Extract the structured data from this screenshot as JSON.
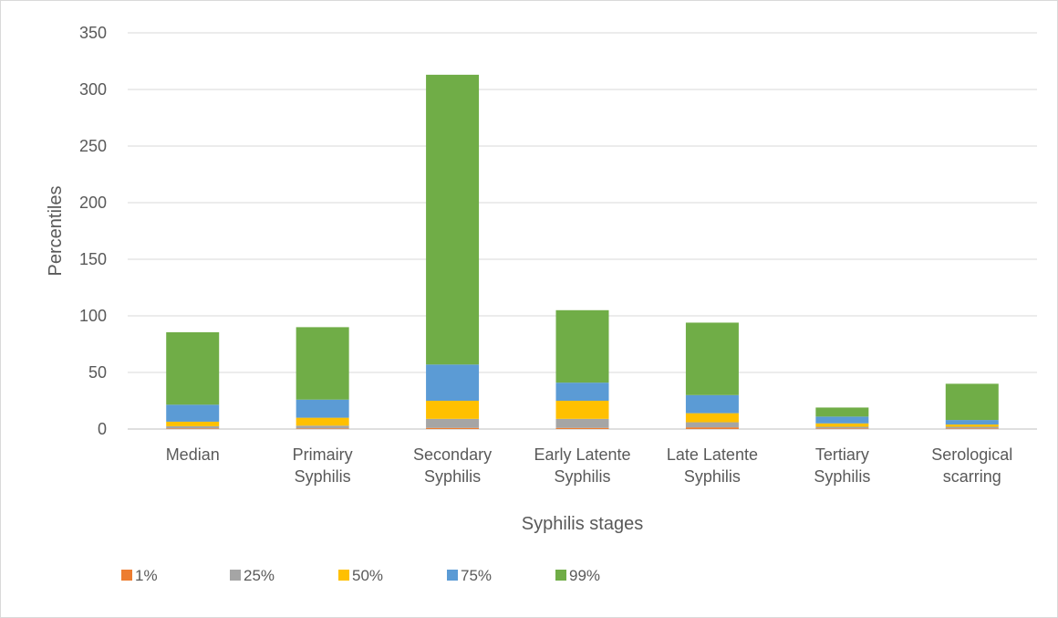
{
  "chart_data": {
    "type": "bar",
    "stacked": true,
    "title": "",
    "xlabel": "Syphilis stages",
    "ylabel": "Percentiles",
    "ylim": [
      0,
      350
    ],
    "yticks": [
      0,
      50,
      100,
      150,
      200,
      250,
      300,
      350
    ],
    "grid": true,
    "legend_position": "bottom-left",
    "categories": [
      [
        "Median"
      ],
      [
        "Primairy",
        "Syphilis"
      ],
      [
        "Secondary",
        "Syphilis"
      ],
      [
        "Early Latente",
        "Syphilis"
      ],
      [
        "Late Latente",
        "Syphilis"
      ],
      [
        "Tertiary",
        "Syphilis"
      ],
      [
        "Serological",
        "scarring"
      ]
    ],
    "series": [
      {
        "name": "1%",
        "color": "#ED7D31",
        "values": [
          0.5,
          0.5,
          1,
          1,
          1.5,
          0.5,
          0.5
        ]
      },
      {
        "name": "25%",
        "color": "#A5A5A5",
        "values": [
          2,
          2.5,
          8,
          8,
          4.5,
          1.5,
          1.5
        ]
      },
      {
        "name": "50%",
        "color": "#FFC000",
        "values": [
          4,
          7,
          16,
          16,
          8,
          3,
          2
        ]
      },
      {
        "name": "75%",
        "color": "#5B9BD5",
        "values": [
          15,
          16,
          32,
          16,
          16,
          6,
          4
        ]
      },
      {
        "name": "99%",
        "color": "#70AD47",
        "values": [
          64,
          64,
          256,
          64,
          64,
          8,
          32
        ]
      }
    ]
  }
}
